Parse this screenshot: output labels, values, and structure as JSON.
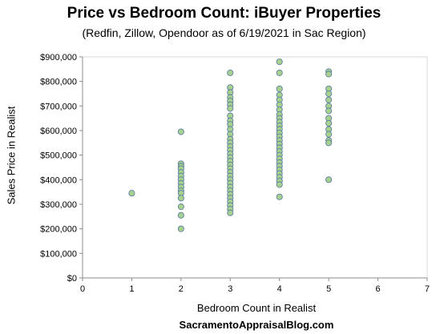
{
  "chart_data": {
    "type": "scatter",
    "title": "Price vs Bedroom Count: iBuyer Properties",
    "subtitle": "(Redfin, Zillow, Opendoor  as of 6/19/2021 in Sac Region)",
    "xlabel": "Bedroom Count in Realist",
    "ylabel": "Sales Price in Realist",
    "credit": "SacramentoAppraisalBlog.com",
    "xlim": [
      0,
      7
    ],
    "ylim": [
      0,
      900000
    ],
    "x_ticks": [
      "0",
      "1",
      "2",
      "3",
      "4",
      "5",
      "6",
      "7"
    ],
    "y_ticks": [
      "$0",
      "$100,000",
      "$200,000",
      "$300,000",
      "$400,000",
      "$500,000",
      "$600,000",
      "$700,000",
      "$800,000",
      "$900,000"
    ],
    "grid": false,
    "marker_fill": "#a9d18e",
    "marker_edge": "#5b7fa6",
    "points": [
      {
        "x": 1,
        "y": 345000
      },
      {
        "x": 2,
        "y": 595000
      },
      {
        "x": 2,
        "y": 465000
      },
      {
        "x": 2,
        "y": 455000
      },
      {
        "x": 2,
        "y": 445000
      },
      {
        "x": 2,
        "y": 430000
      },
      {
        "x": 2,
        "y": 415000
      },
      {
        "x": 2,
        "y": 400000
      },
      {
        "x": 2,
        "y": 385000
      },
      {
        "x": 2,
        "y": 370000
      },
      {
        "x": 2,
        "y": 355000
      },
      {
        "x": 2,
        "y": 345000
      },
      {
        "x": 2,
        "y": 325000
      },
      {
        "x": 2,
        "y": 290000
      },
      {
        "x": 2,
        "y": 255000
      },
      {
        "x": 2,
        "y": 200000
      },
      {
        "x": 3,
        "y": 835000
      },
      {
        "x": 3,
        "y": 775000
      },
      {
        "x": 3,
        "y": 755000
      },
      {
        "x": 3,
        "y": 735000
      },
      {
        "x": 3,
        "y": 720000
      },
      {
        "x": 3,
        "y": 705000
      },
      {
        "x": 3,
        "y": 690000
      },
      {
        "x": 3,
        "y": 660000
      },
      {
        "x": 3,
        "y": 640000
      },
      {
        "x": 3,
        "y": 625000
      },
      {
        "x": 3,
        "y": 605000
      },
      {
        "x": 3,
        "y": 585000
      },
      {
        "x": 3,
        "y": 565000
      },
      {
        "x": 3,
        "y": 550000
      },
      {
        "x": 3,
        "y": 535000
      },
      {
        "x": 3,
        "y": 520000
      },
      {
        "x": 3,
        "y": 505000
      },
      {
        "x": 3,
        "y": 490000
      },
      {
        "x": 3,
        "y": 475000
      },
      {
        "x": 3,
        "y": 460000
      },
      {
        "x": 3,
        "y": 445000
      },
      {
        "x": 3,
        "y": 430000
      },
      {
        "x": 3,
        "y": 415000
      },
      {
        "x": 3,
        "y": 400000
      },
      {
        "x": 3,
        "y": 385000
      },
      {
        "x": 3,
        "y": 370000
      },
      {
        "x": 3,
        "y": 355000
      },
      {
        "x": 3,
        "y": 340000
      },
      {
        "x": 3,
        "y": 325000
      },
      {
        "x": 3,
        "y": 310000
      },
      {
        "x": 3,
        "y": 295000
      },
      {
        "x": 3,
        "y": 280000
      },
      {
        "x": 3,
        "y": 265000
      },
      {
        "x": 4,
        "y": 880000
      },
      {
        "x": 4,
        "y": 835000
      },
      {
        "x": 4,
        "y": 770000
      },
      {
        "x": 4,
        "y": 745000
      },
      {
        "x": 4,
        "y": 725000
      },
      {
        "x": 4,
        "y": 705000
      },
      {
        "x": 4,
        "y": 685000
      },
      {
        "x": 4,
        "y": 665000
      },
      {
        "x": 4,
        "y": 650000
      },
      {
        "x": 4,
        "y": 635000
      },
      {
        "x": 4,
        "y": 620000
      },
      {
        "x": 4,
        "y": 605000
      },
      {
        "x": 4,
        "y": 590000
      },
      {
        "x": 4,
        "y": 575000
      },
      {
        "x": 4,
        "y": 560000
      },
      {
        "x": 4,
        "y": 545000
      },
      {
        "x": 4,
        "y": 530000
      },
      {
        "x": 4,
        "y": 515000
      },
      {
        "x": 4,
        "y": 500000
      },
      {
        "x": 4,
        "y": 485000
      },
      {
        "x": 4,
        "y": 470000
      },
      {
        "x": 4,
        "y": 455000
      },
      {
        "x": 4,
        "y": 440000
      },
      {
        "x": 4,
        "y": 425000
      },
      {
        "x": 4,
        "y": 410000
      },
      {
        "x": 4,
        "y": 395000
      },
      {
        "x": 4,
        "y": 380000
      },
      {
        "x": 4,
        "y": 330000
      },
      {
        "x": 5,
        "y": 840000
      },
      {
        "x": 5,
        "y": 830000
      },
      {
        "x": 5,
        "y": 770000
      },
      {
        "x": 5,
        "y": 750000
      },
      {
        "x": 5,
        "y": 725000
      },
      {
        "x": 5,
        "y": 700000
      },
      {
        "x": 5,
        "y": 680000
      },
      {
        "x": 5,
        "y": 650000
      },
      {
        "x": 5,
        "y": 630000
      },
      {
        "x": 5,
        "y": 605000
      },
      {
        "x": 5,
        "y": 585000
      },
      {
        "x": 5,
        "y": 560000
      },
      {
        "x": 5,
        "y": 550000
      },
      {
        "x": 5,
        "y": 400000
      }
    ]
  }
}
